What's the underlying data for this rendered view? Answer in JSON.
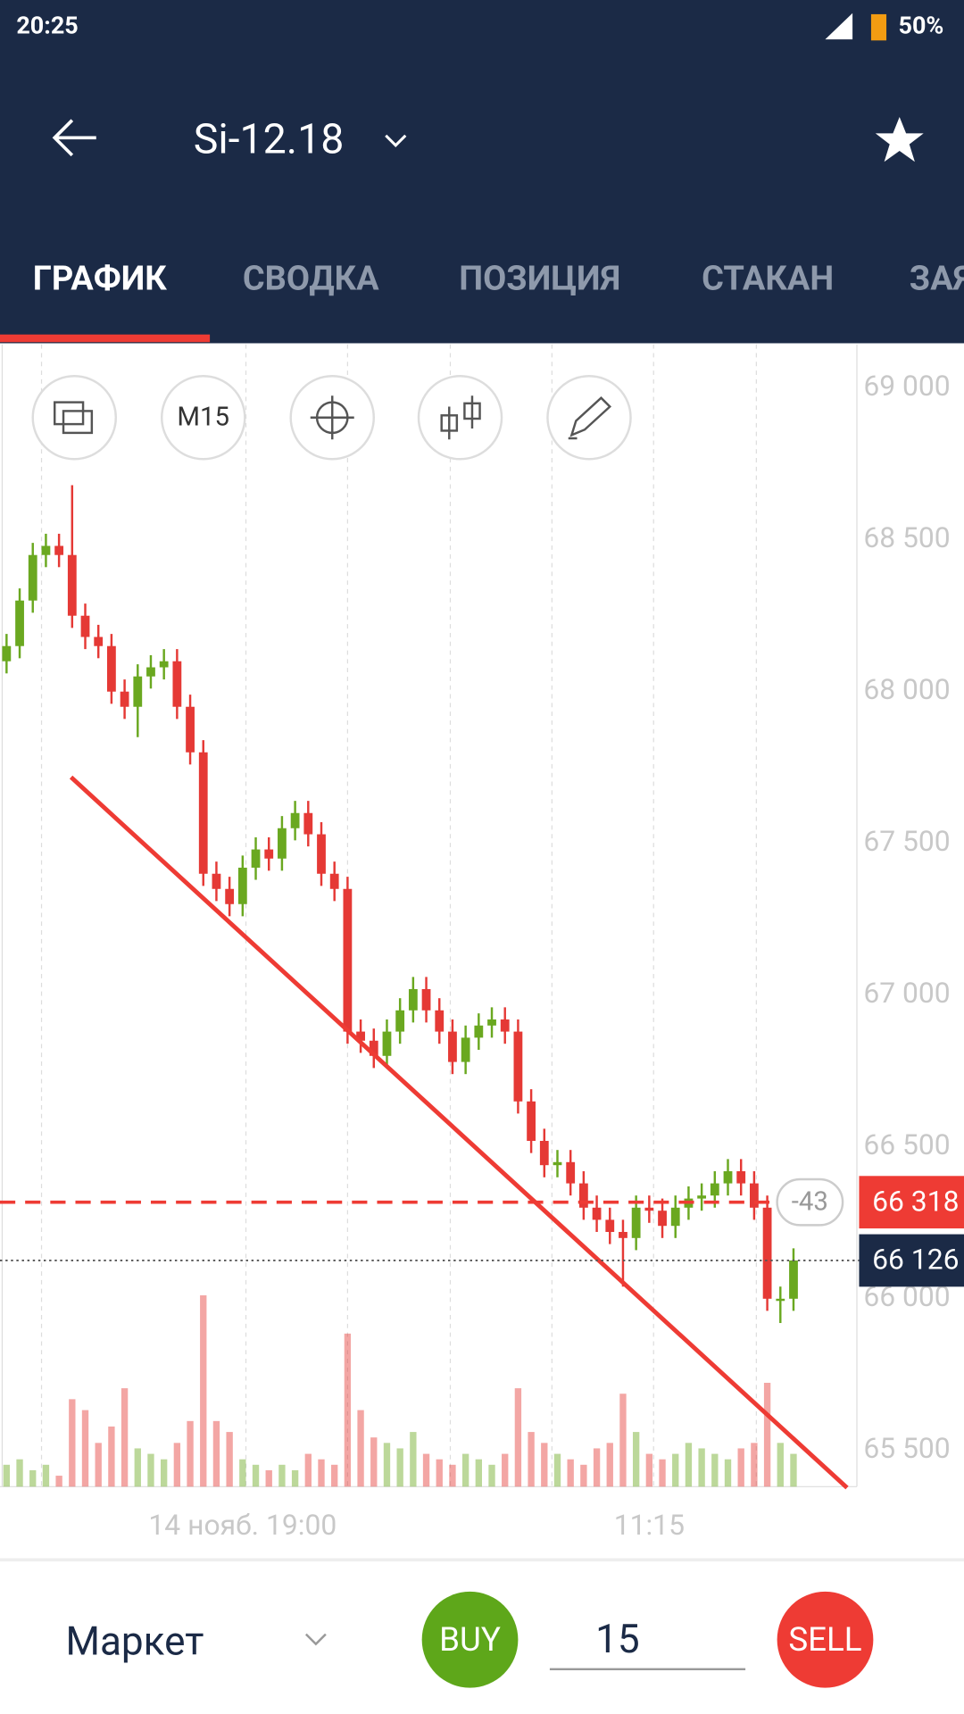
{
  "status_bar": {
    "time": "20:25",
    "battery": "50%"
  },
  "header": {
    "title": "Si-12.18",
    "tabs": [
      "ГРАФИК",
      "СВОДКА",
      "ПОЗИЦИЯ",
      "СТАКАН",
      "ЗАЯВКИ"
    ]
  },
  "toolbar": {
    "interval": "M15"
  },
  "chart_data": {
    "type": "candlestick",
    "categories": [
      null,
      null,
      null,
      null,
      null,
      null,
      null,
      null,
      null,
      null,
      null,
      null,
      null,
      null,
      null,
      null,
      null,
      null,
      "14 нояб. 19:00",
      null,
      null,
      null,
      null,
      null,
      null,
      null,
      null,
      null,
      null,
      null,
      null,
      null,
      null,
      null,
      null,
      null,
      null,
      null,
      null,
      null,
      null,
      null,
      null,
      null,
      null,
      null,
      null,
      null,
      null,
      "11:15",
      null,
      null,
      null,
      null,
      null,
      null,
      null,
      null,
      null,
      null,
      null
    ],
    "open": [
      68100,
      68150,
      68300,
      68450,
      68480,
      68450,
      68250,
      68180,
      68150,
      68000,
      67950,
      68050,
      68080,
      68100,
      67950,
      67800,
      67400,
      67350,
      67300,
      67420,
      67480,
      67450,
      67550,
      67600,
      67530,
      67400,
      67350,
      66880,
      66850,
      66800,
      66880,
      66950,
      67020,
      66950,
      66880,
      66780,
      66860,
      66900,
      66920,
      66880,
      66650,
      66520,
      66440,
      66450,
      66380,
      66300,
      66260,
      66220,
      66200,
      66300,
      66290,
      66240,
      66300,
      66330,
      66340,
      66380,
      66420,
      66380,
      66300,
      66000,
      66000
    ],
    "high": [
      68190,
      68340,
      68490,
      68520,
      68520,
      68680,
      68290,
      68220,
      68190,
      68040,
      68090,
      68120,
      68140,
      68140,
      67990,
      67840,
      67440,
      67390,
      67460,
      67520,
      67520,
      67590,
      67640,
      67640,
      67570,
      67440,
      67390,
      66920,
      66890,
      66920,
      66990,
      67060,
      67060,
      66990,
      66920,
      66900,
      66940,
      66960,
      66960,
      66920,
      66690,
      66560,
      66490,
      66490,
      66420,
      66340,
      66300,
      66260,
      66340,
      66340,
      66330,
      66340,
      66370,
      66380,
      66420,
      66460,
      66460,
      66420,
      66340,
      66040,
      66166
    ],
    "low": [
      68060,
      68110,
      68260,
      68410,
      68410,
      68210,
      68140,
      68110,
      67960,
      67910,
      67850,
      68010,
      68040,
      67910,
      67760,
      67360,
      67310,
      67260,
      67260,
      67380,
      67410,
      67410,
      67510,
      67490,
      67360,
      67310,
      66840,
      66810,
      66760,
      66760,
      66840,
      66910,
      66910,
      66840,
      66740,
      66740,
      66820,
      66860,
      66840,
      66610,
      66480,
      66400,
      66400,
      66340,
      66260,
      66220,
      66180,
      66040,
      66160,
      66250,
      66200,
      66200,
      66260,
      66290,
      66300,
      66340,
      66340,
      66260,
      65960,
      65920,
      65960
    ],
    "close": [
      68150,
      68300,
      68450,
      68480,
      68450,
      68250,
      68180,
      68150,
      68000,
      67950,
      68050,
      68080,
      68100,
      67950,
      67800,
      67400,
      67350,
      67300,
      67420,
      67480,
      67450,
      67550,
      67600,
      67530,
      67400,
      67350,
      66880,
      66850,
      66800,
      66880,
      66950,
      67020,
      66950,
      66880,
      66780,
      66860,
      66900,
      66920,
      66880,
      66650,
      66520,
      66440,
      66450,
      66380,
      66300,
      66260,
      66220,
      66200,
      66300,
      66290,
      66240,
      66300,
      66330,
      66340,
      66380,
      66420,
      66380,
      66300,
      66000,
      66000,
      66126
    ],
    "volume": [
      20,
      25,
      15,
      20,
      10,
      80,
      70,
      40,
      55,
      90,
      35,
      30,
      25,
      40,
      60,
      175,
      60,
      50,
      25,
      20,
      15,
      20,
      15,
      30,
      25,
      20,
      140,
      70,
      45,
      40,
      35,
      50,
      30,
      25,
      20,
      30,
      25,
      20,
      30,
      90,
      50,
      40,
      30,
      25,
      20,
      35,
      40,
      85,
      50,
      30,
      25,
      30,
      40,
      35,
      30,
      25,
      35,
      40,
      95,
      40,
      30
    ],
    "up_color": "#6aa820",
    "down_color": "#e53935",
    "ylim": [
      65381,
      69144
    ],
    "yticks": [
      {
        "value": 65500,
        "label": "65 500"
      },
      {
        "value": 66000,
        "label": "66 000"
      },
      {
        "value": 66500,
        "label": "66 500"
      },
      {
        "value": 67000,
        "label": "67 000"
      },
      {
        "value": 67500,
        "label": "67 500"
      },
      {
        "value": 68000,
        "label": "68 000"
      },
      {
        "value": 68500,
        "label": "68 500"
      },
      {
        "value": 69000,
        "label": "69 000"
      }
    ],
    "position_price": {
      "value": 66318,
      "label": "66 318"
    },
    "last_price": {
      "value": 66126,
      "label": "66 126"
    },
    "pnl": "-43"
  },
  "order_bar": {
    "order_type": "Маркет",
    "buy": "BUY",
    "quantity": "15",
    "sell": "SELL"
  }
}
